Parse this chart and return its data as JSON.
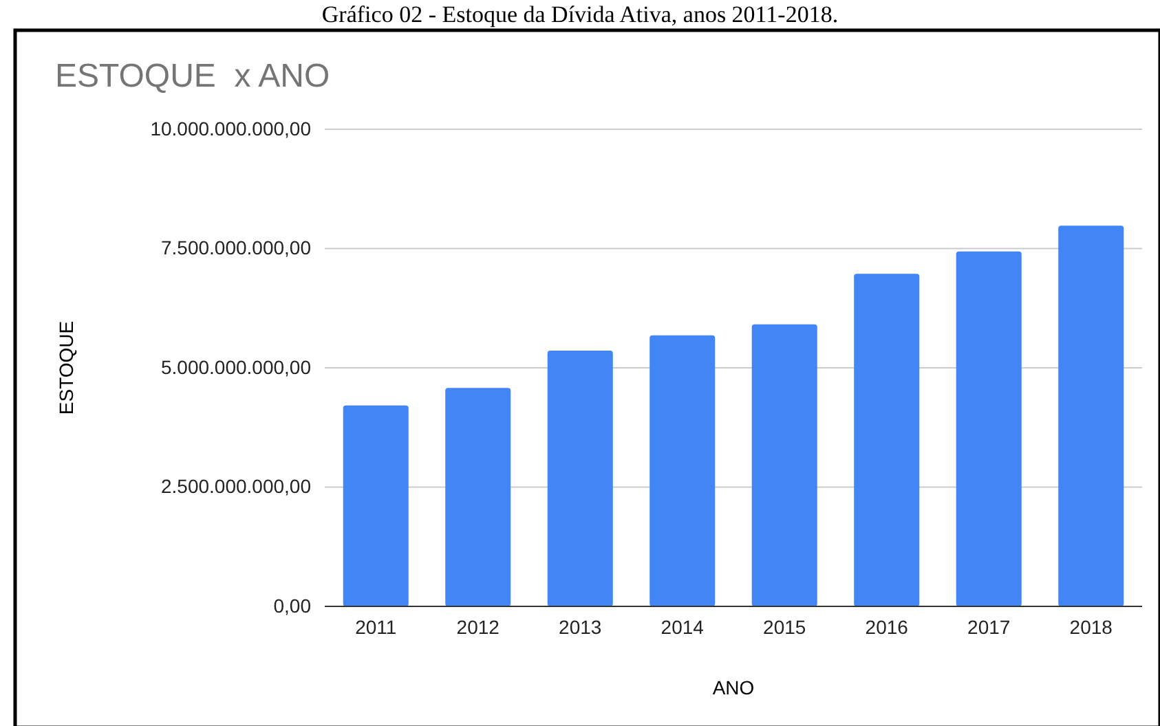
{
  "chart_data": {
    "type": "bar",
    "title": "ESTOQUE  x ANO",
    "xlabel": "ANO",
    "ylabel": "ESTOQUE",
    "annotations": [
      "Gráfico 02 - Estoque da Dívida Ativa, anos 2011-2018."
    ],
    "categories": [
      "2011",
      "2012",
      "2013",
      "2014",
      "2015",
      "2016",
      "2017",
      "2018"
    ],
    "values": [
      4210000000,
      4580000000,
      5360000000,
      5680000000,
      5910000000,
      6970000000,
      7440000000,
      7980000000
    ],
    "color": "#4285f4",
    "ylim": [
      0,
      10000000000
    ],
    "yticks": [
      {
        "value": 0,
        "label": "0,00"
      },
      {
        "value": 2500000000,
        "label": "2.500.000.000,00"
      },
      {
        "value": 5000000000,
        "label": "5.000.000.000,00"
      },
      {
        "value": 7500000000,
        "label": "7.500.000.000,00"
      },
      {
        "value": 10000000000,
        "label": "10.000.000.000,00"
      }
    ],
    "grid": "y"
  }
}
